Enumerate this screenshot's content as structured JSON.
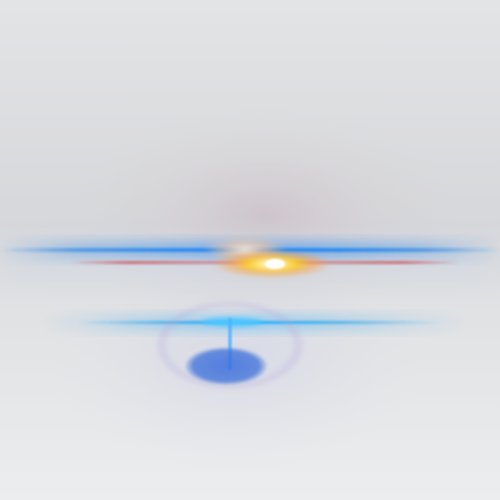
{
  "image": {
    "subject": "lens-flare",
    "colors": {
      "background_top": "#e3e4e6",
      "background_mid": "#d7d8db",
      "background_bottom": "#ecedef",
      "upper_beam": "#1f7fe6",
      "lower_beam": "#1aa0f0",
      "red_streak": "#d84a4a",
      "core_white": "#ffffff",
      "core_yellow": "#ffd21a",
      "core_orange": "#ff9a2a",
      "halo_warm": "#f6c7a0",
      "ghost_disc": "#3b6fd8",
      "haze": "#b9a9bb"
    }
  }
}
